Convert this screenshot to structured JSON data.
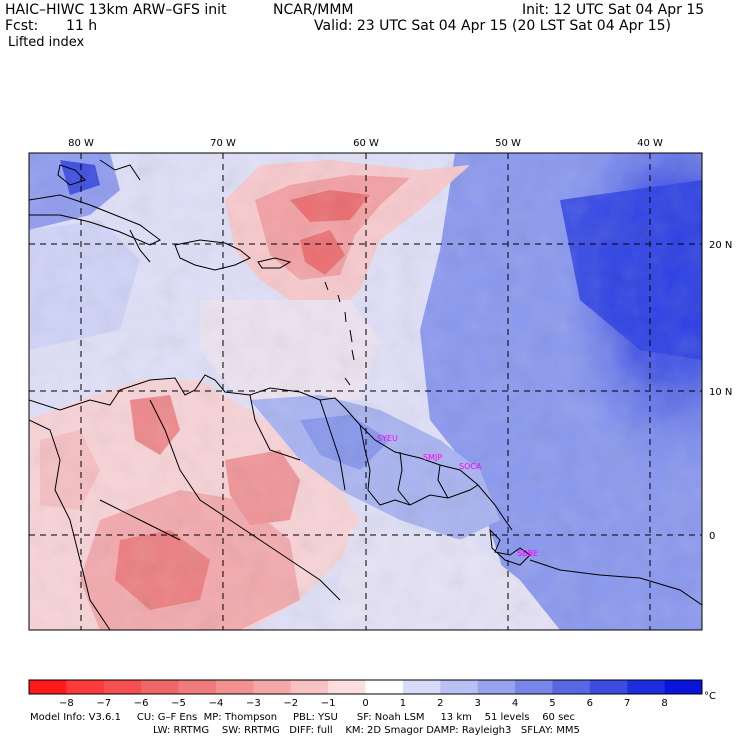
{
  "header": {
    "title_left": "HAIC–HIWC 13km ARW–GFS init",
    "title_center": "NCAR/MMM",
    "init": "Init: 12 UTC Sat 04 Apr 15",
    "fcst_label": "Fcst:",
    "fcst_value": "11 h",
    "valid": "Valid: 23 UTC Sat 04 Apr 15 (20 LST Sat 04 Apr 15)",
    "field": "Lifted index"
  },
  "map": {
    "lon_labels": [
      "80 W",
      "70 W",
      "60 W",
      "50 W",
      "40 W"
    ],
    "lat_labels": [
      "20 N",
      "10 N",
      "0"
    ],
    "stations": [
      "SYEU",
      "SMJP",
      "SOCA",
      "SBBE"
    ],
    "colors": {
      "strong_positive": "#3a4ce0",
      "mid_positive": "#8f9ef0",
      "weak_positive": "#d8dcf8",
      "neutral": "#f3e8ec",
      "weak_negative": "#fad4d8",
      "mid_negative": "#f39a9e",
      "strong_negative": "#e96466"
    }
  },
  "colorbar": {
    "labels": [
      "−8",
      "−7",
      "−6",
      "−5",
      "−4",
      "−3",
      "−2",
      "−1",
      "0",
      "1",
      "2",
      "3",
      "4",
      "5",
      "6",
      "7",
      "8"
    ],
    "unit": "°C",
    "colors": [
      "#ff1a1a",
      "#ff3a3a",
      "#f5504f",
      "#f06666",
      "#f07b7b",
      "#f39191",
      "#f6a8a8",
      "#f9c2c2",
      "#fcdede",
      "#ffffff",
      "#d8dcfa",
      "#b8c0f4",
      "#98a3ee",
      "#7886e8",
      "#5868e2",
      "#3c4be0",
      "#1e2ede",
      "#0a14d8"
    ]
  },
  "footer": {
    "line1": "Model Info: V3.6.1     CU: G–F Ens  MP: Thompson     PBL: YSU      SF: Noah LSM     13 km    51 levels    60 sec",
    "line2": "LW: RRTMG    SW: RRTMG   DIFF: full    KM: 2D Smagor DAMP: Rayleigh3   SFLAY: MM5"
  }
}
